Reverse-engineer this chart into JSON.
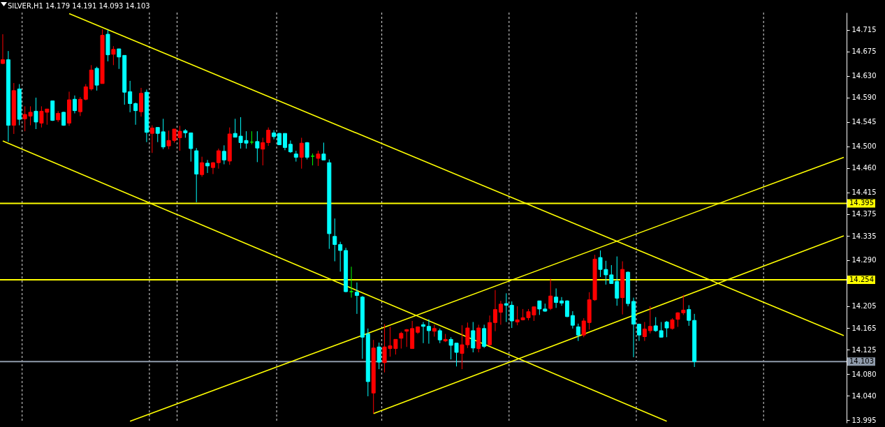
{
  "chart_data": {
    "type": "candlestick",
    "title": "SILVER,H1 14.179 14.191 14.093 14.103",
    "categories": [
      null,
      null,
      null,
      null,
      null,
      null,
      null,
      null,
      null,
      null,
      null,
      null,
      null,
      null,
      null,
      null,
      null,
      null,
      null,
      null,
      null,
      null,
      null,
      null,
      null,
      null,
      null,
      null,
      null,
      null,
      null,
      null,
      null,
      null,
      null,
      null,
      null,
      null,
      null,
      null,
      null,
      null,
      null,
      null,
      null,
      null,
      null,
      null,
      null,
      null,
      null,
      null,
      null,
      null,
      null,
      null,
      null,
      null,
      null,
      null,
      null,
      null,
      null,
      null,
      null,
      null,
      null,
      null,
      null,
      null,
      null,
      null,
      null,
      null,
      null,
      null,
      null,
      null,
      null,
      null,
      null,
      null,
      null,
      null,
      null,
      null,
      null,
      null,
      null,
      null,
      null,
      null,
      null,
      null,
      null,
      null,
      null,
      null,
      null,
      null,
      null,
      null,
      null,
      null,
      null,
      null,
      null,
      null,
      null,
      null,
      null,
      null,
      null,
      null,
      null,
      null,
      null,
      null,
      null,
      null,
      null,
      null,
      null,
      null,
      null,
      null,
      null,
      null,
      null,
      null,
      null,
      null,
      null,
      null,
      null,
      null,
      null,
      null,
      null,
      null,
      null,
      null,
      null,
      null,
      null,
      null,
      null,
      null,
      null,
      null,
      null,
      null,
      null
    ],
    "ohlc": [
      [
        14.653,
        14.707,
        14.652,
        14.66
      ],
      [
        14.66,
        14.676,
        14.509,
        14.539
      ],
      [
        14.539,
        14.617,
        14.523,
        14.603
      ],
      [
        14.606,
        14.615,
        14.539,
        14.55
      ],
      [
        14.551,
        14.574,
        14.528,
        14.559
      ],
      [
        14.556,
        14.574,
        14.539,
        14.563
      ],
      [
        14.565,
        14.59,
        14.532,
        14.545
      ],
      [
        14.543,
        14.574,
        14.535,
        14.565
      ],
      [
        14.563,
        14.569,
        14.54,
        14.569
      ],
      [
        14.584,
        14.584,
        14.547,
        14.548
      ],
      [
        14.549,
        14.565,
        14.545,
        14.561
      ],
      [
        14.563,
        14.564,
        14.538,
        14.539
      ],
      [
        14.543,
        14.601,
        14.538,
        14.586
      ],
      [
        14.587,
        14.594,
        14.561,
        14.566
      ],
      [
        14.564,
        14.591,
        14.556,
        14.587
      ],
      [
        14.587,
        14.615,
        14.585,
        14.61
      ],
      [
        14.606,
        14.65,
        14.603,
        14.641
      ],
      [
        14.644,
        14.647,
        14.603,
        14.613
      ],
      [
        14.616,
        14.716,
        14.616,
        14.705
      ],
      [
        14.707,
        14.715,
        14.657,
        14.669
      ],
      [
        14.67,
        14.685,
        14.65,
        14.679
      ],
      [
        14.68,
        14.68,
        14.643,
        14.665
      ],
      [
        14.668,
        14.668,
        14.577,
        14.6
      ],
      [
        14.601,
        14.621,
        14.563,
        14.579
      ],
      [
        14.579,
        14.581,
        14.54,
        14.566
      ],
      [
        14.564,
        14.608,
        14.555,
        14.598
      ],
      [
        14.6,
        14.605,
        14.508,
        14.526
      ],
      [
        14.524,
        14.539,
        14.488,
        14.534
      ],
      [
        14.535,
        14.535,
        14.508,
        14.524
      ],
      [
        14.527,
        14.551,
        14.495,
        14.499
      ],
      [
        14.501,
        14.529,
        14.495,
        14.511
      ],
      [
        14.511,
        14.532,
        14.507,
        14.532
      ],
      [
        14.516,
        14.538,
        14.492,
        14.528
      ],
      [
        14.529,
        14.532,
        14.516,
        14.525
      ],
      [
        14.525,
        14.525,
        14.472,
        14.496
      ],
      [
        14.492,
        14.497,
        14.397,
        14.449
      ],
      [
        14.448,
        14.481,
        14.444,
        14.47
      ],
      [
        14.469,
        14.475,
        14.451,
        14.464
      ],
      [
        14.461,
        14.471,
        14.449,
        14.47
      ],
      [
        14.47,
        14.496,
        14.459,
        14.492
      ],
      [
        14.491,
        14.502,
        14.467,
        14.475
      ],
      [
        14.473,
        14.535,
        14.466,
        14.523
      ],
      [
        14.524,
        14.551,
        14.517,
        14.517
      ],
      [
        14.519,
        14.554,
        14.496,
        14.507
      ],
      [
        14.511,
        14.528,
        14.496,
        14.506
      ],
      [
        14.508,
        14.528,
        14.504,
        14.508
      ],
      [
        14.509,
        14.528,
        14.471,
        14.497
      ],
      [
        14.495,
        14.516,
        14.465,
        14.507
      ],
      [
        14.507,
        14.535,
        14.501,
        14.53
      ],
      [
        14.525,
        14.53,
        14.513,
        14.518
      ],
      [
        14.524,
        14.525,
        14.503,
        14.503
      ],
      [
        14.524,
        14.524,
        14.493,
        14.498
      ],
      [
        14.504,
        14.511,
        14.488,
        14.49
      ],
      [
        14.486,
        14.492,
        14.472,
        14.48
      ],
      [
        14.48,
        14.516,
        14.459,
        14.506
      ],
      [
        14.507,
        14.508,
        14.476,
        14.48
      ],
      [
        14.482,
        14.487,
        14.465,
        14.482
      ],
      [
        14.478,
        14.492,
        14.464,
        14.486
      ],
      [
        14.486,
        14.507,
        14.475,
        14.475
      ],
      [
        14.47,
        14.476,
        14.311,
        14.339
      ],
      [
        14.334,
        14.367,
        14.288,
        14.319
      ],
      [
        14.319,
        14.324,
        14.269,
        14.308
      ],
      [
        14.308,
        14.313,
        14.231,
        14.232
      ],
      [
        14.232,
        14.278,
        14.221,
        14.232
      ],
      [
        14.231,
        14.249,
        14.191,
        14.225
      ],
      [
        14.222,
        14.224,
        14.108,
        14.148
      ],
      [
        14.154,
        14.164,
        14.039,
        14.066
      ],
      [
        14.045,
        14.143,
        14.007,
        14.128
      ],
      [
        14.13,
        14.138,
        14.089,
        14.102
      ],
      [
        14.101,
        14.172,
        14.083,
        14.13
      ],
      [
        14.127,
        14.167,
        14.112,
        14.132
      ],
      [
        14.127,
        14.144,
        14.116,
        14.144
      ],
      [
        14.146,
        14.158,
        14.127,
        14.155
      ],
      [
        14.159,
        14.163,
        14.13,
        14.162
      ],
      [
        14.127,
        14.178,
        14.127,
        14.164
      ],
      [
        14.157,
        14.168,
        14.154,
        14.167
      ],
      [
        14.171,
        14.176,
        14.137,
        14.168
      ],
      [
        14.168,
        14.181,
        14.136,
        14.16
      ],
      [
        14.159,
        14.171,
        14.149,
        14.164
      ],
      [
        14.16,
        14.164,
        14.137,
        14.143
      ],
      [
        14.141,
        14.154,
        14.139,
        14.144
      ],
      [
        14.144,
        14.148,
        14.107,
        14.133
      ],
      [
        14.137,
        14.137,
        14.094,
        14.12
      ],
      [
        14.118,
        14.17,
        14.089,
        14.134
      ],
      [
        14.134,
        14.175,
        14.128,
        14.165
      ],
      [
        14.16,
        14.176,
        14.12,
        14.128
      ],
      [
        14.127,
        14.171,
        14.12,
        14.165
      ],
      [
        14.164,
        14.171,
        14.128,
        14.131
      ],
      [
        14.134,
        14.188,
        14.132,
        14.175
      ],
      [
        14.175,
        14.235,
        14.159,
        14.199
      ],
      [
        14.194,
        14.215,
        14.171,
        14.209
      ],
      [
        14.21,
        14.229,
        14.176,
        14.207
      ],
      [
        14.207,
        14.214,
        14.165,
        14.178
      ],
      [
        14.176,
        14.205,
        14.17,
        14.18
      ],
      [
        14.18,
        14.2,
        14.179,
        14.184
      ],
      [
        14.184,
        14.2,
        14.179,
        14.195
      ],
      [
        14.189,
        14.204,
        14.178,
        14.204
      ],
      [
        14.215,
        14.215,
        14.189,
        14.2
      ],
      [
        14.2,
        14.21,
        14.195,
        14.196
      ],
      [
        14.201,
        14.256,
        14.198,
        14.224
      ],
      [
        14.222,
        14.238,
        14.202,
        14.212
      ],
      [
        14.215,
        14.222,
        14.206,
        14.211
      ],
      [
        14.215,
        14.216,
        14.185,
        14.186
      ],
      [
        14.188,
        14.196,
        14.164,
        14.17
      ],
      [
        14.167,
        14.173,
        14.141,
        14.152
      ],
      [
        14.152,
        14.183,
        14.148,
        14.178
      ],
      [
        14.175,
        14.231,
        14.162,
        14.217
      ],
      [
        14.217,
        14.3,
        14.215,
        14.292
      ],
      [
        14.295,
        14.308,
        14.259,
        14.273
      ],
      [
        14.273,
        14.289,
        14.245,
        14.263
      ],
      [
        14.263,
        14.281,
        14.247,
        14.247
      ],
      [
        14.251,
        14.297,
        14.206,
        14.22
      ],
      [
        14.221,
        14.288,
        14.19,
        14.273
      ],
      [
        14.268,
        14.269,
        14.205,
        14.21
      ],
      [
        14.214,
        14.221,
        14.111,
        14.172
      ],
      [
        14.172,
        14.173,
        14.141,
        14.152
      ],
      [
        14.149,
        14.176,
        14.141,
        14.163
      ],
      [
        14.16,
        14.205,
        14.155,
        14.168
      ],
      [
        14.169,
        14.185,
        14.158,
        14.16
      ],
      [
        14.16,
        14.176,
        14.148,
        14.148
      ],
      [
        14.176,
        14.178,
        14.148,
        14.165
      ],
      [
        14.164,
        14.183,
        14.162,
        14.18
      ],
      [
        14.181,
        14.194,
        14.167,
        14.193
      ],
      [
        14.193,
        14.226,
        14.189,
        14.198
      ],
      [
        14.199,
        14.207,
        14.169,
        14.179
      ],
      [
        14.179,
        14.191,
        14.093,
        14.103
      ],
      null,
      null,
      null,
      null,
      null,
      null,
      null,
      null,
      null,
      null,
      null,
      null,
      null,
      null,
      null,
      null,
      null,
      null,
      null,
      null,
      null,
      null,
      null,
      null,
      null,
      null,
      null
    ],
    "colors": [
      "#ff0000",
      "#00ffff",
      "#ff0000",
      "#00ffff",
      "#ff0000",
      "#ff0000",
      "#00ffff",
      "#ff0000",
      "#ff0000",
      "#00ffff",
      "#ff0000",
      "#00ffff",
      "#ff0000",
      "#00ffff",
      "#ff0000",
      "#ff0000",
      "#ff0000",
      "#00ffff",
      "#ff0000",
      "#00ffff",
      "#ff0000",
      "#00ffff",
      "#00ffff",
      "#00ffff",
      "#00ffff",
      "#ff0000",
      "#00ffff",
      "#ff0000",
      "#00ffff",
      "#00ffff",
      "#ff0000",
      "#ff0000",
      "#ff0000",
      "#00ffff",
      "#00ffff",
      "#00ffff",
      "#ff0000",
      "#00ffff",
      "#ff0000",
      "#ff0000",
      "#00ffff",
      "#ff0000",
      "#00ffff",
      "#00ffff",
      "#00ffff",
      "#00ff00",
      "#00ffff",
      "#ff0000",
      "#ff0000",
      "#00ffff",
      "#00ffff",
      "#00ffff",
      "#00ffff",
      "#00ffff",
      "#ff0000",
      "#00ffff",
      "#00ff00",
      "#ff0000",
      "#00ffff",
      "#00ffff",
      "#00ffff",
      "#00ffff",
      "#00ffff",
      "#00ff00",
      "#00ffff",
      "#00ffff",
      "#00ffff",
      "#ff0000",
      "#00ffff",
      "#ff0000",
      "#ff0000",
      "#ff0000",
      "#ff0000",
      "#ff0000",
      "#ff0000",
      "#ff0000",
      "#00ffff",
      "#00ffff",
      "#ff0000",
      "#00ffff",
      "#ff0000",
      "#00ffff",
      "#00ffff",
      "#ff0000",
      "#ff0000",
      "#00ffff",
      "#ff0000",
      "#00ffff",
      "#ff0000",
      "#ff0000",
      "#ff0000",
      "#00ffff",
      "#00ffff",
      "#ff0000",
      "#ff0000",
      "#ff0000",
      "#ff0000",
      "#00ffff",
      "#00ffff",
      "#ff0000",
      "#00ffff",
      "#00ffff",
      "#00ffff",
      "#00ffff",
      "#00ffff",
      "#ff0000",
      "#ff0000",
      "#ff0000",
      "#00ffff",
      "#00ffff",
      "#00ffff",
      "#00ffff",
      "#ff0000",
      "#00ffff",
      "#00ffff",
      "#00ffff",
      "#ff0000",
      "#ff0000",
      "#00ffff",
      "#00ffff",
      "#00ffff",
      "#ff0000",
      "#ff0000",
      "#ff0000",
      "#00ffff",
      "#00ffff",
      null,
      null,
      null,
      null,
      null,
      null,
      null,
      null,
      null,
      null,
      null,
      null,
      null,
      null,
      null,
      null,
      null,
      null,
      null,
      null,
      null,
      null,
      null,
      null,
      null,
      null,
      null
    ],
    "series": [
      {
        "type": "line",
        "color": "#ffff00",
        "values": [
          null,
          null,
          null,
          null,
          null,
          null,
          null,
          null,
          null,
          null,
          null,
          null,
          14.745,
          null,
          null,
          null,
          null,
          null,
          null,
          null,
          null,
          null,
          null,
          null,
          null,
          null,
          null,
          null,
          null,
          null,
          null,
          null,
          null,
          null,
          null,
          null,
          null,
          null,
          null,
          null,
          null,
          null,
          null,
          null,
          null,
          null,
          null,
          null,
          null,
          null,
          null,
          null,
          null,
          null,
          null,
          null,
          null,
          null,
          null,
          null,
          null,
          null,
          null,
          null,
          null,
          null,
          null,
          null,
          null,
          null,
          null,
          null,
          null,
          null,
          null,
          null,
          null,
          null,
          null,
          null,
          null,
          null,
          null,
          null,
          null,
          null,
          null,
          null,
          null,
          null,
          null,
          null,
          null,
          null,
          null,
          null,
          null,
          null,
          null,
          null,
          null,
          null,
          null,
          null,
          null,
          null,
          null,
          null,
          null,
          null,
          null,
          null,
          null,
          null,
          null,
          null,
          null,
          null,
          null,
          null,
          null,
          null,
          null,
          null,
          null,
          null,
          null,
          null,
          null,
          null,
          null,
          null,
          null,
          null,
          null,
          null,
          null,
          null,
          null,
          null,
          null,
          null,
          null,
          null,
          null,
          null,
          null,
          null,
          null,
          null,
          null,
          null,
          14.151
        ]
      },
      {
        "type": "line",
        "color": "#ffff00",
        "values": [
          14.51,
          null,
          null,
          null,
          null,
          null,
          null,
          null,
          null,
          null,
          null,
          null,
          null,
          null,
          null,
          null,
          null,
          null,
          null,
          null,
          null,
          null,
          null,
          null,
          null,
          null,
          null,
          null,
          null,
          null,
          null,
          null,
          null,
          null,
          null,
          null,
          null,
          null,
          null,
          null,
          null,
          null,
          null,
          null,
          null,
          null,
          null,
          null,
          null,
          null,
          null,
          null,
          null,
          null,
          null,
          null,
          null,
          null,
          null,
          null,
          null,
          null,
          null,
          null,
          null,
          null,
          null,
          null,
          null,
          null,
          null,
          null,
          null,
          null,
          null,
          null,
          null,
          null,
          null,
          null,
          null,
          null,
          null,
          null,
          null,
          null,
          null,
          null,
          null,
          null,
          null,
          null,
          null,
          null,
          null,
          null,
          null,
          null,
          null,
          null,
          null,
          null,
          null,
          null,
          null,
          null,
          null,
          null,
          null,
          null,
          null,
          null,
          null,
          null,
          null,
          null,
          null,
          null,
          null,
          null,
          13.993,
          null,
          null,
          null,
          null,
          null,
          null,
          null,
          null,
          null,
          null,
          null,
          null,
          null,
          null,
          null,
          null,
          null,
          null,
          null,
          null,
          null,
          null,
          null,
          null,
          null,
          null,
          null,
          null,
          null,
          null,
          null,
          null
        ]
      },
      {
        "type": "line",
        "color": "#ffff00",
        "values": [
          null,
          null,
          null,
          null,
          null,
          null,
          null,
          null,
          null,
          null,
          null,
          null,
          null,
          null,
          null,
          null,
          null,
          null,
          null,
          null,
          null,
          null,
          null,
          13.993,
          null,
          null,
          null,
          null,
          null,
          null,
          null,
          null,
          null,
          null,
          null,
          null,
          null,
          null,
          null,
          null,
          null,
          null,
          null,
          null,
          null,
          null,
          null,
          null,
          null,
          null,
          null,
          null,
          null,
          null,
          null,
          null,
          null,
          null,
          null,
          null,
          null,
          null,
          null,
          null,
          null,
          null,
          null,
          null,
          null,
          null,
          null,
          null,
          null,
          null,
          null,
          null,
          null,
          null,
          null,
          null,
          null,
          null,
          null,
          null,
          null,
          null,
          null,
          null,
          null,
          null,
          null,
          null,
          null,
          null,
          null,
          null,
          null,
          null,
          null,
          null,
          null,
          null,
          null,
          null,
          null,
          null,
          null,
          null,
          null,
          null,
          null,
          null,
          null,
          null,
          null,
          null,
          null,
          null,
          null,
          null,
          null,
          null,
          null,
          null,
          null,
          null,
          null,
          null,
          null,
          null,
          null,
          null,
          null,
          null,
          null,
          null,
          null,
          null,
          null,
          null,
          null,
          null,
          null,
          null,
          null,
          null,
          null,
          null,
          null,
          null,
          null,
          null,
          14.48
        ]
      },
      {
        "type": "line",
        "color": "#ffff00",
        "values": [
          null,
          null,
          null,
          null,
          null,
          null,
          null,
          null,
          null,
          null,
          null,
          null,
          null,
          null,
          null,
          null,
          null,
          null,
          null,
          null,
          null,
          null,
          null,
          null,
          null,
          null,
          null,
          null,
          null,
          null,
          null,
          null,
          null,
          null,
          null,
          null,
          null,
          null,
          null,
          null,
          null,
          null,
          null,
          null,
          null,
          null,
          null,
          null,
          null,
          null,
          null,
          null,
          null,
          null,
          null,
          null,
          null,
          null,
          null,
          null,
          null,
          null,
          null,
          null,
          null,
          null,
          null,
          14.007,
          null,
          null,
          null,
          null,
          null,
          null,
          null,
          null,
          null,
          null,
          null,
          null,
          null,
          null,
          null,
          null,
          null,
          null,
          null,
          null,
          null,
          null,
          null,
          null,
          null,
          null,
          null,
          null,
          null,
          null,
          null,
          null,
          null,
          null,
          null,
          null,
          null,
          null,
          null,
          null,
          null,
          null,
          null,
          null,
          null,
          null,
          null,
          null,
          null,
          null,
          null,
          null,
          null,
          null,
          null,
          null,
          null,
          null,
          null,
          null,
          null,
          null,
          null,
          null,
          null,
          null,
          null,
          null,
          null,
          null,
          null,
          null,
          null,
          null,
          null,
          null,
          null,
          null,
          null,
          null,
          null,
          null,
          null,
          null,
          14.335
        ]
      }
    ],
    "ref_lines": [
      {
        "axis": "y",
        "value": 14.395,
        "label": "14.395",
        "color": "#ffff00"
      },
      {
        "axis": "y",
        "value": 14.254,
        "label": "14.254",
        "color": "#ffff00"
      },
      {
        "axis": "y",
        "value": 14.103,
        "label": "14.103",
        "color": "#8f9bab"
      }
    ],
    "ylim": [
      13.99,
      14.747
    ],
    "yticks": [
      {
        "value": 14.715,
        "label": "14.715"
      },
      {
        "value": 14.675,
        "label": "14.675"
      },
      {
        "value": 14.63,
        "label": "14.630"
      },
      {
        "value": 14.59,
        "label": "14.590"
      },
      {
        "value": 14.545,
        "label": "14.545"
      },
      {
        "value": 14.5,
        "label": "14.500"
      },
      {
        "value": 14.46,
        "label": "14.460"
      },
      {
        "value": 14.415,
        "label": "14.415"
      },
      {
        "value": 14.375,
        "label": "14.375"
      },
      {
        "value": 14.335,
        "label": "14.335"
      },
      {
        "value": 14.29,
        "label": "14.290"
      },
      {
        "value": 14.205,
        "label": "14.205"
      },
      {
        "value": 14.165,
        "label": "14.165"
      },
      {
        "value": 14.125,
        "label": "14.125"
      },
      {
        "value": 14.08,
        "label": "14.080"
      },
      {
        "value": 14.04,
        "label": "14.040"
      },
      {
        "value": 13.995,
        "label": "13.995"
      }
    ],
    "tick_labels": "y"
  }
}
